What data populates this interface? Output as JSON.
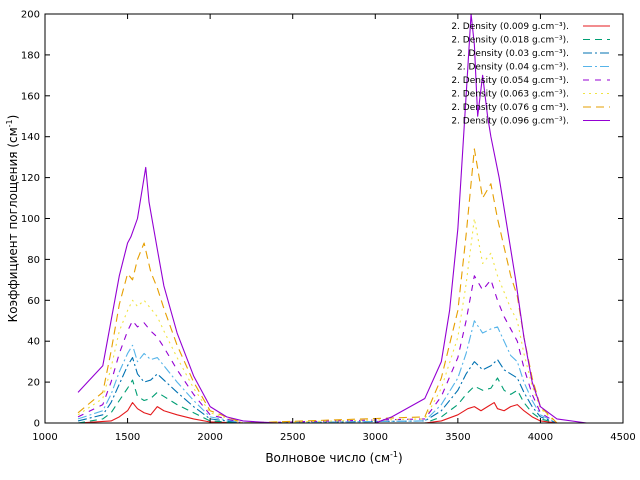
{
  "chart_data": {
    "type": "line",
    "title": "",
    "xlabel": "Волновое число (см",
    "xlabel_sup": "-1",
    "xlabel_suffix": ")",
    "ylabel": "Коэффициент поглощения (см",
    "ylabel_sup": "-1",
    "ylabel_suffix": ")",
    "xlim": [
      1000,
      4500
    ],
    "ylim": [
      0,
      200
    ],
    "xticks": [
      1000,
      1500,
      2000,
      2500,
      3000,
      3500,
      4000,
      4500
    ],
    "yticks": [
      0,
      20,
      40,
      60,
      80,
      100,
      120,
      140,
      160,
      180,
      200
    ],
    "grid": false,
    "legend_position": "top-right",
    "series": [
      {
        "name": "2. Density (0.009 g.cm⁻³).",
        "color": "#e41a1c",
        "dash": "solid",
        "x": [
          1200,
          1400,
          1450,
          1500,
          1530,
          1560,
          1600,
          1640,
          1680,
          1720,
          1800,
          1900,
          2000,
          2200,
          3300,
          3400,
          3500,
          3560,
          3600,
          3640,
          3680,
          3720,
          3740,
          3780,
          3820,
          3860,
          3900,
          3950,
          4000,
          4100
        ],
        "y": [
          0,
          1,
          3,
          6,
          10,
          7,
          5,
          4,
          8,
          6,
          4,
          2,
          0.5,
          0,
          0,
          1,
          4,
          7,
          8,
          6,
          8,
          10,
          7,
          6,
          8,
          9,
          6,
          3,
          1,
          0
        ]
      },
      {
        "name": "2. Density (0.018 g.cm⁻³).",
        "color": "#009e73",
        "dash": "7,5",
        "x": [
          1200,
          1350,
          1400,
          1450,
          1500,
          1530,
          1560,
          1600,
          1640,
          1680,
          1720,
          1800,
          1900,
          2000,
          2200,
          3300,
          3400,
          3500,
          3550,
          3600,
          3650,
          3700,
          3740,
          3780,
          3820,
          3860,
          3900,
          3950,
          4000,
          4100
        ],
        "y": [
          0,
          2,
          5,
          11,
          17,
          21,
          13,
          11,
          12,
          15,
          13,
          9,
          5,
          1,
          0,
          0,
          3,
          9,
          14,
          18,
          16,
          17,
          22,
          16,
          14,
          16,
          10,
          5,
          2,
          0
        ]
      },
      {
        "name": "2. Density (0.03 g.cm⁻³).",
        "color": "#0072b2",
        "dash": "9,3,2,3",
        "x": [
          1200,
          1350,
          1400,
          1450,
          1500,
          1530,
          1560,
          1600,
          1640,
          1680,
          1720,
          1800,
          1900,
          2000,
          2200,
          3300,
          3400,
          3500,
          3550,
          3600,
          3650,
          3700,
          3740,
          3780,
          3820,
          3860,
          3900,
          3950,
          4000,
          4100
        ],
        "y": [
          1,
          4,
          10,
          19,
          28,
          32,
          24,
          20,
          21,
          24,
          21,
          15,
          8,
          2,
          0,
          1,
          6,
          16,
          24,
          30,
          26,
          28,
          31,
          26,
          24,
          22,
          15,
          8,
          3,
          0
        ]
      },
      {
        "name": "2. Density (0.04 g.cm⁻³).",
        "color": "#56b4e9",
        "dash": "9,3,2,3",
        "x": [
          1200,
          1350,
          1400,
          1450,
          1500,
          1530,
          1560,
          1600,
          1640,
          1680,
          1720,
          1800,
          1900,
          2000,
          2200,
          3300,
          3400,
          3500,
          3550,
          3600,
          3650,
          3700,
          3740,
          3780,
          3820,
          3860,
          3900,
          3950,
          4000,
          4100
        ],
        "y": [
          2,
          6,
          14,
          25,
          34,
          38,
          30,
          34,
          31,
          32,
          28,
          20,
          11,
          3,
          0,
          1,
          9,
          22,
          34,
          50,
          44,
          46,
          47,
          40,
          33,
          30,
          20,
          11,
          4,
          0
        ]
      },
      {
        "name": "2. Density (0.054 g.cm⁻³).",
        "color": "#9400d3",
        "dash": "6,6",
        "x": [
          1200,
          1350,
          1400,
          1450,
          1500,
          1530,
          1560,
          1600,
          1640,
          1680,
          1720,
          1800,
          1900,
          2000,
          2200,
          3300,
          3400,
          3500,
          3550,
          3600,
          3650,
          3700,
          3740,
          3780,
          3820,
          3860,
          3900,
          3950,
          4000,
          4100
        ],
        "y": [
          3,
          9,
          20,
          34,
          45,
          50,
          47,
          49,
          45,
          42,
          37,
          26,
          14,
          4,
          0,
          2,
          13,
          32,
          50,
          72,
          65,
          70,
          60,
          52,
          46,
          40,
          27,
          14,
          5,
          0
        ]
      },
      {
        "name": "2. Density (0.063 g.cm⁻³).",
        "color": "#f0e442",
        "dash": "2,4",
        "x": [
          1200,
          1350,
          1400,
          1450,
          1500,
          1530,
          1560,
          1600,
          1640,
          1680,
          1720,
          1800,
          1900,
          2000,
          2200,
          3300,
          3400,
          3500,
          3550,
          3600,
          3650,
          3700,
          3740,
          3780,
          3820,
          3860,
          3900,
          3950,
          4000,
          4100
        ],
        "y": [
          4,
          12,
          27,
          45,
          55,
          60,
          57,
          60,
          56,
          52,
          45,
          32,
          17,
          5,
          0,
          2,
          17,
          42,
          68,
          100,
          78,
          83,
          72,
          64,
          56,
          50,
          34,
          18,
          7,
          0
        ]
      },
      {
        "name": "2. Density (0.076 g cm⁻³).",
        "color": "#e69f00",
        "dash": "8,5",
        "x": [
          1200,
          1350,
          1400,
          1450,
          1500,
          1530,
          1560,
          1600,
          1640,
          1680,
          1720,
          1800,
          1900,
          2000,
          2200,
          3300,
          3400,
          3500,
          3550,
          3600,
          3650,
          3700,
          3740,
          3780,
          3820,
          3860,
          3900,
          3950,
          4000,
          4100
        ],
        "y": [
          5,
          15,
          35,
          58,
          73,
          70,
          80,
          88,
          74,
          66,
          56,
          38,
          20,
          6,
          0,
          3,
          22,
          55,
          92,
          134,
          110,
          117,
          100,
          86,
          72,
          62,
          42,
          22,
          8,
          0
        ]
      },
      {
        "name": "2. Density (0.096 g.cm⁻³).",
        "color": "#9400d3",
        "dash": "solid",
        "x": [
          1200,
          1350,
          1400,
          1450,
          1500,
          1520,
          1560,
          1590,
          1610,
          1630,
          1680,
          1720,
          1800,
          1900,
          2000,
          2100,
          2200,
          2400,
          3000,
          3100,
          3300,
          3400,
          3450,
          3500,
          3550,
          3580,
          3600,
          3620,
          3650,
          3680,
          3700,
          3750,
          3800,
          3850,
          3900,
          3950,
          4000,
          4100,
          4280
        ],
        "y": [
          15,
          28,
          50,
          72,
          88,
          91,
          100,
          115,
          125,
          108,
          85,
          67,
          44,
          23,
          8,
          3,
          1,
          0,
          0,
          3,
          12,
          30,
          55,
          95,
          160,
          200,
          185,
          150,
          170,
          150,
          140,
          120,
          95,
          70,
          42,
          20,
          8,
          2,
          0
        ]
      }
    ]
  }
}
